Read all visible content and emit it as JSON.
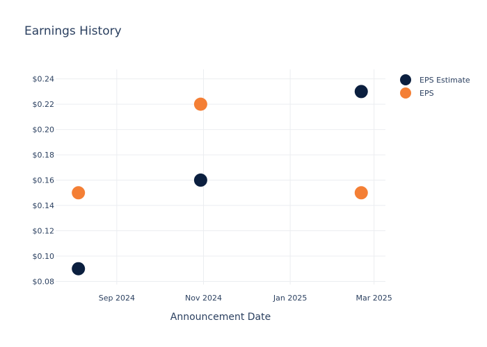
{
  "chart_data": {
    "type": "scatter",
    "title": "Earnings History",
    "xlabel": "Announcement Date",
    "ylabel": "",
    "x_tick_labels": [
      "Sep 2024",
      "Nov 2024",
      "Jan 2025",
      "Mar 2025"
    ],
    "x_tick_dates": [
      "2024-09-01",
      "2024-11-01",
      "2025-01-01",
      "2025-03-01"
    ],
    "xlim": [
      "2024-07-20",
      "2025-03-09"
    ],
    "y_tick_labels": [
      "$0.08",
      "$0.10",
      "$0.12",
      "$0.14",
      "$0.16",
      "$0.18",
      "$0.20",
      "$0.22",
      "$0.24"
    ],
    "y_tick_values": [
      0.08,
      0.1,
      0.12,
      0.14,
      0.16,
      0.18,
      0.2,
      0.22,
      0.24
    ],
    "ylim": [
      0.0775,
      0.2475
    ],
    "grid": true,
    "legend_position": "top-right",
    "series": [
      {
        "name": "EPS Estimate",
        "color": "#0b1f3f",
        "points": [
          {
            "x": "2024-08-05",
            "y": 0.09
          },
          {
            "x": "2024-10-30",
            "y": 0.16
          },
          {
            "x": "2025-02-20",
            "y": 0.23
          }
        ]
      },
      {
        "name": "EPS",
        "color": "#f47f35",
        "points": [
          {
            "x": "2024-08-05",
            "y": 0.15
          },
          {
            "x": "2024-10-30",
            "y": 0.22
          },
          {
            "x": "2025-02-20",
            "y": 0.15
          }
        ]
      }
    ]
  }
}
